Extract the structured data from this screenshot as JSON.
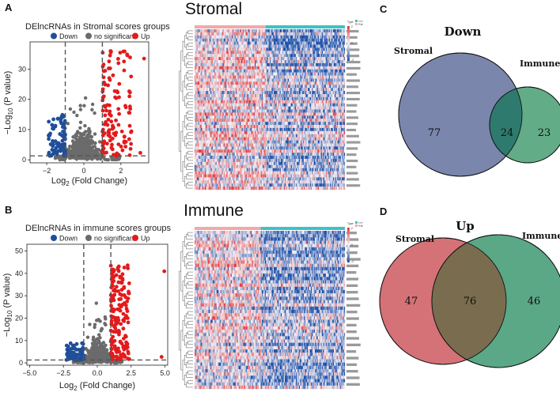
{
  "panels": {
    "A": "A",
    "B": "B",
    "C": "C",
    "D": "D",
    "top_title": "Stromal",
    "bottom_title": "Immune"
  },
  "colors": {
    "down": "#1f4e9a",
    "ns": "#6b6b6b",
    "up": "#e31a1c",
    "heat_high": "#e23a3a",
    "heat_mid": "#f7f2f6",
    "heat_low": "#1b4fa8",
    "venn_down_stromal": "#7a86ac",
    "venn_down_immune": "#62ac88",
    "venn_down_overlap": "#2f7a6e",
    "venn_up_stromal": "#d47278",
    "venn_up_immune": "#5aa886",
    "venn_up_overlap": "#7a6d4f",
    "annot_pink": "#f2a8a8",
    "annot_cyan": "#3ec1c8"
  },
  "chart_data": [
    {
      "type": "scatter",
      "id": "volcano-stromal",
      "title": "DElncRNAs in Stromal scores groups",
      "legend": [
        "Down",
        "no significant",
        "Up"
      ],
      "xlabel_main": "Log",
      "xlabel_sub": "2",
      "xlabel_rest": " (Fold Change)",
      "ylabel_main": "−Log",
      "ylabel_sub": "10",
      "ylabel_rest": " (P value)",
      "xlim": [
        -2.9,
        3.5
      ],
      "ylim": [
        -1,
        39
      ],
      "xticks": [
        -2,
        0,
        2
      ],
      "xtick_labels": [
        "−2",
        "0",
        "2"
      ],
      "yticks": [
        0,
        10,
        20,
        30
      ],
      "ytick_labels": [
        "0",
        "10",
        "20",
        "30"
      ],
      "fc_cutoff": 1,
      "p_cutoff": 1.3,
      "seed": 11,
      "n_ns": 480,
      "n_down": 100,
      "n_up": 125,
      "down_xmax": 1.9,
      "up_xmax": 2.6,
      "down_ymax": 15,
      "up_ymax": 36
    },
    {
      "type": "scatter",
      "id": "volcano-immune",
      "title": "DElncRNAs in immune scores groups",
      "legend": [
        "Down",
        "no significant",
        "Up"
      ],
      "xlabel_main": "Log",
      "xlabel_sub": "2",
      "xlabel_rest": " (Fold Change)",
      "ylabel_main": "−Log",
      "ylabel_sub": "10",
      "ylabel_rest": " (P value)",
      "xlim": [
        -5.2,
        5.2
      ],
      "ylim": [
        -1,
        53
      ],
      "xticks": [
        -5,
        -2.5,
        0,
        2.5,
        5
      ],
      "xtick_labels": [
        "−5.0",
        "−2.5",
        "0.0",
        "2.5",
        "5.0"
      ],
      "yticks": [
        0,
        10,
        20,
        30,
        40,
        50
      ],
      "ytick_labels": [
        "0",
        "10",
        "20",
        "30",
        "40",
        "50"
      ],
      "fc_cutoff": 1,
      "p_cutoff": 1.3,
      "seed": 23,
      "n_ns": 520,
      "n_down": 70,
      "n_up": 170,
      "down_xmax": 2.3,
      "up_xmax": 2.4,
      "down_ymax": 9,
      "up_ymax": 44
    },
    {
      "type": "heatmap",
      "id": "heatmap-stromal",
      "rows": 52,
      "cols": 150,
      "seed": 37,
      "split_frac": 0.47,
      "legend_title": "Type",
      "legend_items": [
        "Low",
        "High"
      ],
      "scale_labels": [
        "2",
        "0",
        "-2"
      ]
    },
    {
      "type": "heatmap",
      "id": "heatmap-immune",
      "rows": 48,
      "cols": 150,
      "seed": 53,
      "split_frac": 0.44,
      "legend_title": "Type",
      "legend_items": [
        "Low",
        "High"
      ],
      "scale_labels": [
        "2",
        "0",
        "-2"
      ]
    },
    {
      "type": "venn",
      "id": "venn-down",
      "title": "Down",
      "sets": [
        "Stromal",
        "Immune"
      ],
      "only_a": "77",
      "both": "24",
      "only_b": "23"
    },
    {
      "type": "venn",
      "id": "venn-up",
      "title": "Up",
      "sets": [
        "Stromal",
        "Immune"
      ],
      "only_a": "47",
      "both": "76",
      "only_b": "46"
    }
  ]
}
